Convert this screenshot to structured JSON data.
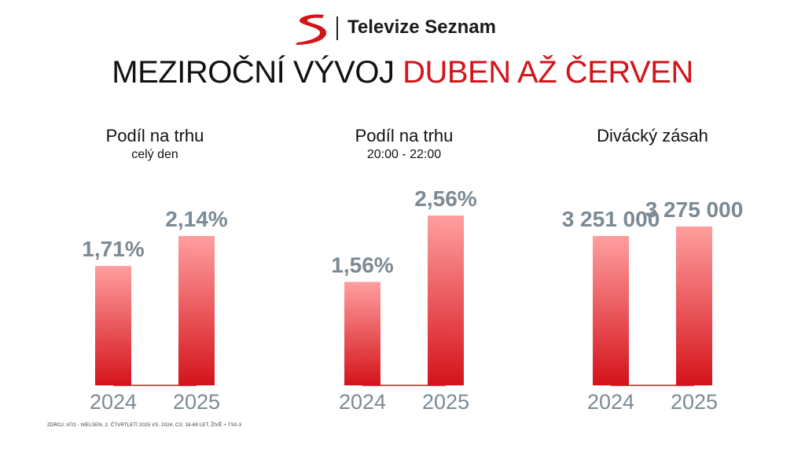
{
  "brand": {
    "name": "Televize Seznam"
  },
  "title": {
    "main": "MEZIROČNÍ VÝVOJ",
    "accent": "DUBEN AŽ ČERVEN"
  },
  "colors": {
    "accent": "#d4131b",
    "value_label": "#7b8a94",
    "bar_top": "#ff9f9f",
    "bar_bottom": "#d4131b",
    "axis_label": "#7b8a94"
  },
  "chart_data": [
    {
      "type": "bar",
      "title": "Podíl na trhu",
      "subtitle": "celý den",
      "categories": [
        "2024",
        "2025"
      ],
      "values": [
        1.71,
        2.14
      ],
      "value_labels": [
        "1,71%",
        "2,14%"
      ],
      "ylim": [
        0,
        2.14
      ]
    },
    {
      "type": "bar",
      "title": "Podíl na trhu",
      "subtitle": "20:00 - 22:00",
      "categories": [
        "2024",
        "2025"
      ],
      "values": [
        1.56,
        2.56
      ],
      "value_labels": [
        "1,56%",
        "2,56%"
      ],
      "ylim": [
        0,
        2.56
      ]
    },
    {
      "type": "bar",
      "title": "Divácký zásah",
      "subtitle": "",
      "categories": [
        "2024",
        "2025"
      ],
      "values": [
        3251000,
        3275000
      ],
      "value_labels": [
        "3 251 000",
        "3 275 000"
      ]
    }
  ],
  "footer": "ZDROJ: ATO - NIELSEN, 2. ČTVRTLETÍ 2025 VS. 2024, CS: 18-69 LET, ŽIVĚ + TS0-3"
}
